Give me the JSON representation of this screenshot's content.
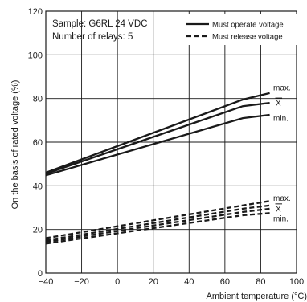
{
  "chart_data": {
    "type": "line",
    "xlabel": "Ambient temperature (°C)",
    "ylabel": "On the basis of rated voltage (%)",
    "xlim": [
      -40,
      100
    ],
    "ylim": [
      0,
      120
    ],
    "x_ticks": [
      -40,
      -20,
      0,
      20,
      40,
      60,
      80,
      100
    ],
    "y_ticks": [
      0,
      20,
      40,
      60,
      80,
      100,
      120
    ],
    "x_tick_labels": [
      "−40",
      "−20",
      "0",
      "20",
      "40",
      "60",
      "80",
      "100"
    ],
    "y_tick_labels": [
      "0",
      "20",
      "40",
      "60",
      "80",
      "100",
      "120"
    ],
    "grid": true,
    "annotations": [
      "Sample: G6RL 24 VDC",
      "Number of relays: 5"
    ],
    "legend": {
      "placement": "top-right",
      "entries": [
        {
          "label": "Must operate voltage",
          "style": "solid"
        },
        {
          "label": "Must release voltage",
          "style": "dashed"
        }
      ]
    },
    "series": [
      {
        "group": "Must operate voltage",
        "stat": "max.",
        "style": "solid",
        "x": [
          -40,
          70,
          85
        ],
        "y": [
          46,
          79.5,
          82.5
        ]
      },
      {
        "group": "Must operate voltage",
        "stat": "X",
        "style": "solid",
        "x": [
          -40,
          70,
          85
        ],
        "y": [
          45.5,
          76.5,
          78
        ]
      },
      {
        "group": "Must operate voltage",
        "stat": "min.",
        "style": "solid",
        "x": [
          -40,
          70,
          85
        ],
        "y": [
          44.8,
          71,
          72.5
        ]
      },
      {
        "group": "Must release voltage",
        "stat": "max.",
        "style": "dashed",
        "x": [
          -40,
          70,
          85
        ],
        "y": [
          16,
          31,
          33
        ]
      },
      {
        "group": "Must release voltage",
        "stat": "",
        "style": "dashed",
        "x": [
          -40,
          70,
          85
        ],
        "y": [
          15,
          29.5,
          31
        ]
      },
      {
        "group": "Must release voltage",
        "stat": "X",
        "style": "dashed",
        "x": [
          -40,
          70,
          85
        ],
        "y": [
          14.3,
          28,
          29.5
        ]
      },
      {
        "group": "Must release voltage",
        "stat": "min.",
        "style": "dashed",
        "x": [
          -40,
          70,
          85
        ],
        "y": [
          13.5,
          26.5,
          27.5
        ]
      }
    ],
    "stat_labels": {
      "operate": [
        {
          "text": "max.",
          "y": 85
        },
        {
          "text": "X",
          "y": 78
        },
        {
          "text": "min.",
          "y": 71
        }
      ],
      "release": [
        {
          "text": "max.",
          "y": 34.5
        },
        {
          "text": "X",
          "y": 29.5
        },
        {
          "text": "min.",
          "y": 25
        }
      ]
    }
  }
}
